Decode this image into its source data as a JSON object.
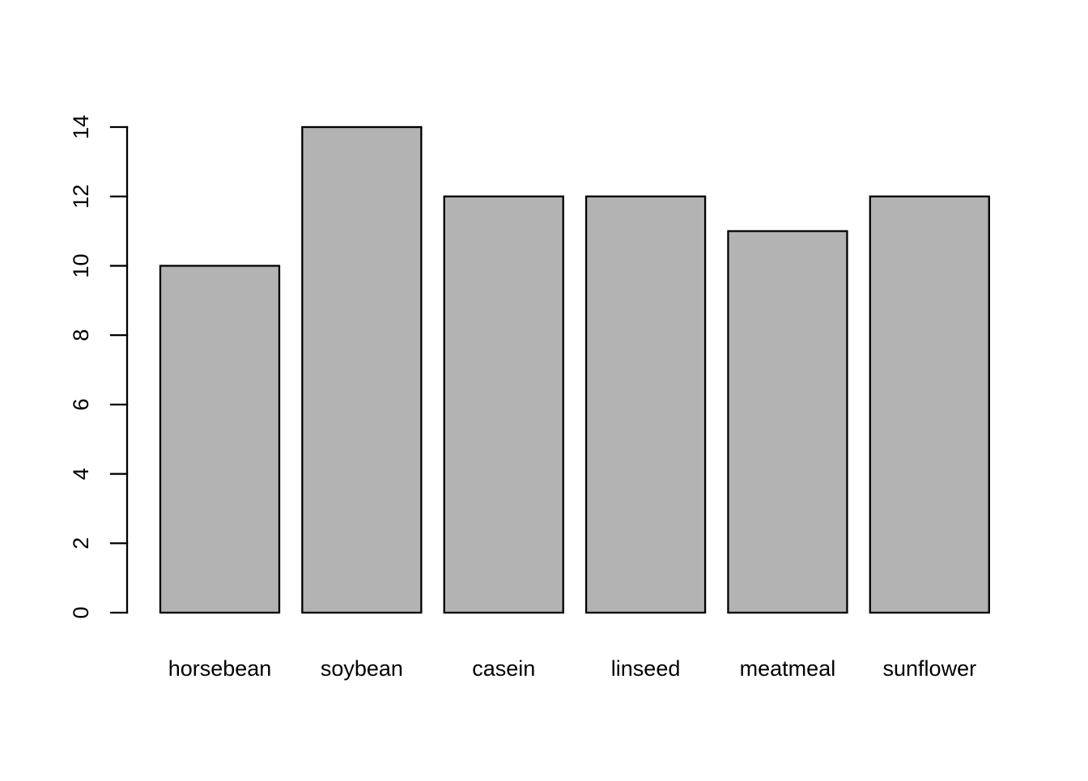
{
  "chart_data": {
    "type": "bar",
    "categories": [
      "horsebean",
      "soybean",
      "casein",
      "linseed",
      "meatmeal",
      "sunflower"
    ],
    "values": [
      10,
      14,
      12,
      12,
      11,
      12
    ],
    "title": "",
    "xlabel": "",
    "ylabel": "",
    "ylim": [
      0,
      14
    ],
    "yticks": [
      0,
      2,
      4,
      6,
      8,
      10,
      12,
      14
    ],
    "grid": false,
    "legend": "none",
    "colors": {
      "bar_fill": "#b3b3b3",
      "bar_stroke": "#000000",
      "axis": "#000000",
      "background": "#ffffff"
    }
  }
}
